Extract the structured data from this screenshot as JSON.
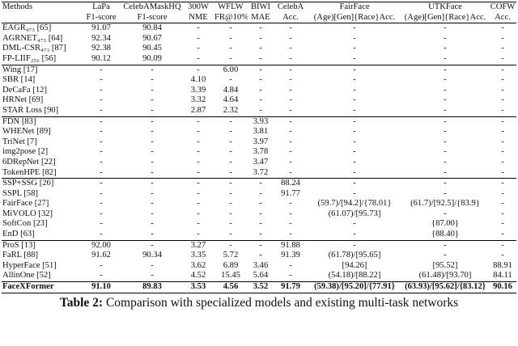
{
  "table": {
    "header": [
      [
        "Methods",
        "LaPa",
        "CelebAMaskHQ",
        "300W",
        "WFLW",
        "BIWI",
        "CelebA",
        "FairFace",
        "UTKFace",
        "COFW"
      ],
      [
        "F1-score",
        "F1-score",
        "NME",
        "FR@10%",
        "MAE",
        "Acc.",
        "(Age)[Gen]{Race}Acc.",
        "(Age)[Gen]{Race}Acc.",
        "Acc."
      ]
    ],
    "groups": [
      {
        "rows": [
          [
            "EAGR₄₇₃ [65]",
            "91.07",
            "90.84",
            "-",
            "-",
            "-",
            "-",
            "-",
            "-",
            "-"
          ],
          [
            "AGRNET₄₇₃ [64]",
            "92.34",
            "90.67",
            "-",
            "-",
            "-",
            "-",
            "-",
            "-",
            "-"
          ],
          [
            "DML-CSR₄₇₃ [87]",
            "92.38",
            "90.45",
            "-",
            "-",
            "-",
            "-",
            "-",
            "-",
            "-"
          ],
          [
            "FP-LIIF₂₅₆ [56]",
            "90.12",
            "90.09",
            "-",
            "-",
            "-",
            "-",
            "-",
            "-",
            "-"
          ]
        ]
      },
      {
        "rows": [
          [
            "Wing [17]",
            "-",
            "-",
            "-",
            "6.00",
            "-",
            "-",
            "-",
            "-",
            "-"
          ],
          [
            "SBR [14]",
            "-",
            "-",
            "4.10",
            "-",
            "-",
            "-",
            "-",
            "-",
            "-"
          ],
          [
            "DeCaFa [12]",
            "-",
            "-",
            "3.39",
            "4.84",
            "-",
            "-",
            "-",
            "-",
            "-"
          ],
          [
            "HRNet [69]",
            "-",
            "-",
            "3.32",
            "4.64",
            "-",
            "-",
            "-",
            "-",
            "-"
          ],
          [
            "STAR Loss [90]",
            "-",
            "-",
            "2.87",
            "2.32",
            "-",
            "-",
            "-",
            "-",
            "-"
          ]
        ]
      },
      {
        "rows": [
          [
            "FDN [83]",
            "-",
            "-",
            "-",
            "-",
            "3.93",
            "-",
            "-",
            "-",
            "-"
          ],
          [
            "WHENet [89]",
            "-",
            "-",
            "-",
            "-",
            "3.81",
            "-",
            "-",
            "-",
            "-"
          ],
          [
            "TriNet [7]",
            "-",
            "-",
            "-",
            "-",
            "3.97",
            "-",
            "-",
            "-",
            "-"
          ],
          [
            "img2pose [2]",
            "-",
            "-",
            "-",
            "-",
            "3.78",
            "-",
            "-",
            "-",
            "-"
          ],
          [
            "6DRepNet [22]",
            "-",
            "-",
            "-",
            "-",
            "3.47",
            "-",
            "-",
            "-",
            "-"
          ],
          [
            "TokenHPE [82]",
            "-",
            "-",
            "-",
            "-",
            "3.72",
            "-",
            "-",
            "-",
            "-"
          ]
        ]
      },
      {
        "rows": [
          [
            "SSP+SSG [26]",
            "-",
            "-",
            "-",
            "-",
            "-",
            "88.24",
            "-",
            "-",
            "-"
          ],
          [
            "SSPL [58]",
            "-",
            "-",
            "-",
            "-",
            "-",
            "91.77",
            "-",
            "-",
            "-"
          ],
          [
            "FairFace [27]",
            "-",
            "-",
            "-",
            "-",
            "-",
            "-",
            "(59.7)/[94.2]/{78.01}",
            "(61.7)/[92.5]/{83.9}",
            "-"
          ],
          [
            "MiVOLO [32]",
            "-",
            "-",
            "-",
            "-",
            "-",
            "-",
            "(61.07)/[95.73]",
            "-",
            "-"
          ],
          [
            "SoftCon [23]",
            "-",
            "-",
            "-",
            "-",
            "-",
            "-",
            "-",
            "{87.00}",
            "-"
          ],
          [
            "EnD [63]",
            "-",
            "-",
            "-",
            "-",
            "-",
            "-",
            "-",
            "{88.40}",
            "-"
          ]
        ]
      },
      {
        "rows": [
          [
            "ProS [13]",
            "92.00",
            "-",
            "3.27",
            "-",
            "-",
            "91.88",
            "-",
            "-",
            "-"
          ],
          [
            "FaRL [88]",
            "91.62",
            "90.34",
            "3.35",
            "5.72",
            "-",
            "91.39",
            "(61.78)/[95.65]",
            "-",
            "-"
          ],
          [
            "HyperFace [51]",
            "-",
            "-",
            "3.62",
            "6.89",
            "3.46",
            "-",
            "[94.26]",
            "[95.52]",
            "88.91"
          ],
          [
            "AllinOne [52]",
            "-",
            "-",
            "4.52",
            "15.45",
            "5.64",
            "-",
            "(54.18)/[88.22]",
            "(61.48)/[93.70]",
            "84.11"
          ]
        ]
      },
      {
        "rows": [
          [
            "FaceXFormer",
            "91.10",
            "89.83",
            "3.53",
            "4.56",
            "3.52",
            "91.79",
            "(59.38)/[95.20]/{77.91}",
            "(63.93)/[95.62]/{83.12}",
            "90.16"
          ]
        ]
      }
    ]
  },
  "caption": {
    "label": "Table 2:",
    "text": "Comparison with specialized models and existing multi-task networks"
  }
}
